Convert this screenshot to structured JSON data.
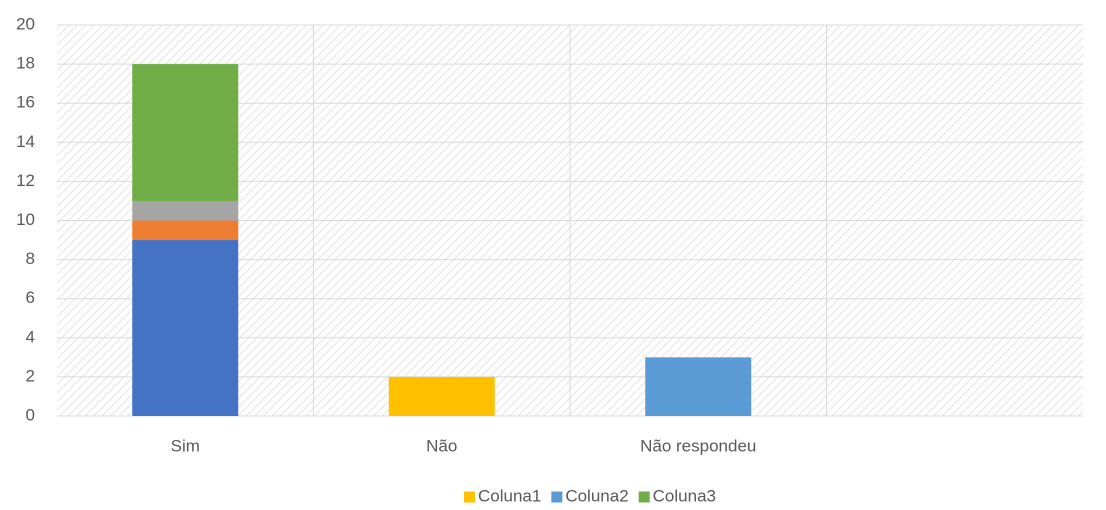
{
  "chart_data": {
    "type": "stacked_bar",
    "categories": [
      "Sim",
      "Não",
      "Não respondeu",
      null
    ],
    "series": [
      {
        "color": "#4472c4",
        "values": [
          9,
          null,
          null,
          null
        ]
      },
      {
        "color": "#ed7d31",
        "values": [
          1,
          null,
          null,
          null
        ]
      },
      {
        "color": "#a5a5a5",
        "values": [
          1,
          null,
          null,
          null
        ]
      },
      {
        "name": "Coluna1",
        "color": "#ffc000",
        "values": [
          null,
          2,
          null,
          null
        ]
      },
      {
        "name": "Coluna2",
        "color": "#5b9bd5",
        "values": [
          null,
          null,
          3,
          null
        ]
      },
      {
        "name": "Coluna3",
        "color": "#70ad47",
        "values": [
          7,
          null,
          null,
          null
        ]
      }
    ],
    "ylim": [
      0,
      20
    ],
    "yticks": [
      0,
      2,
      4,
      6,
      8,
      10,
      12,
      14,
      16,
      18,
      20
    ],
    "grid": true,
    "legend": "bottom"
  }
}
